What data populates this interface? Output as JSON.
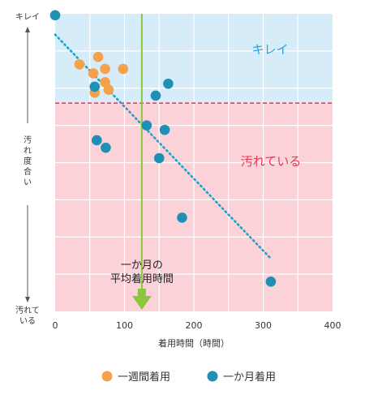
{
  "chart_data": {
    "type": "scatter",
    "title": "",
    "xlabel": "着用時間（時間）",
    "ylabel_top": "キレイ",
    "ylabel_middle": "汚れ度合い",
    "ylabel_bottom": [
      "汚れて",
      "いる"
    ],
    "xlim": [
      0,
      400
    ],
    "ylim": [
      0,
      10
    ],
    "x_ticks": [
      0,
      100,
      200,
      300,
      400
    ],
    "y_threshold": 7.0,
    "avg_wear_hours": 125,
    "avg_label": [
      "一か月の",
      "平均着用時間"
    ],
    "region_labels": {
      "clean": "キレイ",
      "dirty": "汚れている"
    },
    "colors": {
      "clean_region": "#d6ecf9",
      "dirty_region": "#fbd2d8",
      "threshold_line": "#e8344e",
      "avg_line": "#8cc63f",
      "trend_line": "#1aa3c7",
      "series_week": "#f5a04a",
      "series_month": "#1f8fb5",
      "clean_label": "#2aa3df",
      "dirty_label": "#e8344e"
    },
    "trend": {
      "x": [
        0,
        312
      ],
      "y": [
        9.3,
        1.75
      ]
    },
    "series": [
      {
        "name": "一週間着用",
        "color": "#f5a04a",
        "points": [
          {
            "x": 35,
            "y": 8.3
          },
          {
            "x": 55,
            "y": 8.0
          },
          {
            "x": 62,
            "y": 8.55
          },
          {
            "x": 72,
            "y": 8.15
          },
          {
            "x": 72,
            "y": 7.7
          },
          {
            "x": 98,
            "y": 8.15
          },
          {
            "x": 57,
            "y": 7.35
          },
          {
            "x": 77,
            "y": 7.45
          }
        ]
      },
      {
        "name": "一か月着用",
        "color": "#1f8fb5",
        "points": [
          {
            "x": 0,
            "y": 9.95
          },
          {
            "x": 57,
            "y": 7.55
          },
          {
            "x": 60,
            "y": 5.75
          },
          {
            "x": 73,
            "y": 5.5
          },
          {
            "x": 132,
            "y": 6.25
          },
          {
            "x": 145,
            "y": 7.25
          },
          {
            "x": 163,
            "y": 7.65
          },
          {
            "x": 158,
            "y": 6.1
          },
          {
            "x": 150,
            "y": 5.15
          },
          {
            "x": 183,
            "y": 3.15
          },
          {
            "x": 311,
            "y": 1.0
          }
        ]
      }
    ],
    "legend": [
      "一週間着用",
      "一か月着用"
    ]
  }
}
